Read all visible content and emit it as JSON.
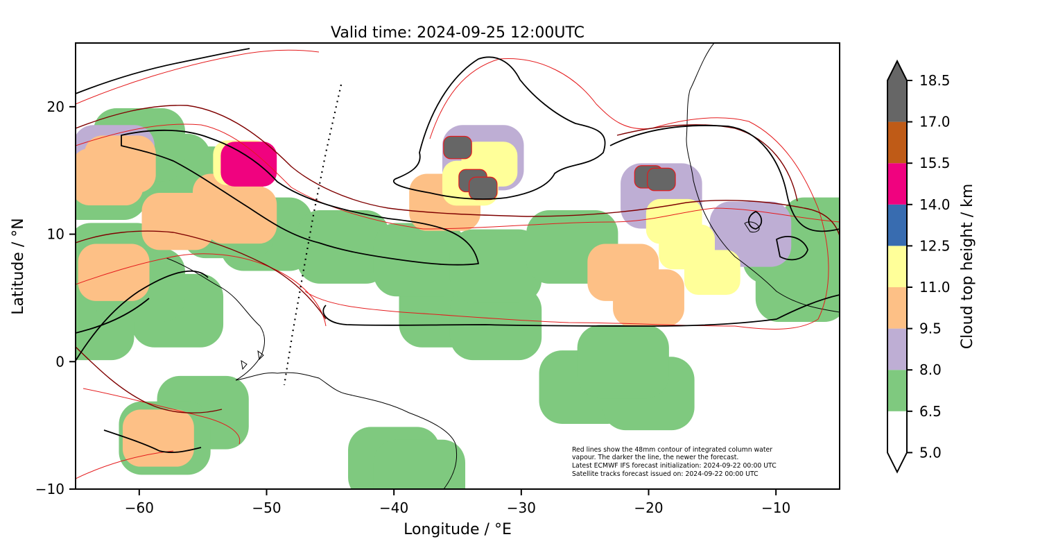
{
  "title": "Valid time: 2024-09-25 12:00UTC",
  "x_axis": {
    "label": "Longitude / °E",
    "range": [
      -65,
      -5
    ],
    "ticks": [
      -60,
      -50,
      -40,
      -30,
      -20,
      -10
    ],
    "tick_labels": [
      "−60",
      "−50",
      "−40",
      "−30",
      "−20",
      "−10"
    ]
  },
  "y_axis": {
    "label": "Latitude / °N",
    "range": [
      -10,
      25
    ],
    "ticks": [
      -10,
      0,
      10,
      20
    ],
    "tick_labels": [
      "−10",
      "0",
      "10",
      "20"
    ]
  },
  "colorbar": {
    "label": "Cloud top height / km",
    "levels": [
      5.0,
      6.5,
      8.0,
      9.5,
      11.0,
      12.5,
      14.0,
      15.5,
      17.0,
      18.5
    ],
    "level_labels": [
      "5.0",
      "6.5",
      "8.0",
      "9.5",
      "11.0",
      "12.5",
      "14.0",
      "15.5",
      "17.0",
      "18.5"
    ],
    "colors": [
      "#ffffff",
      "#7fc97f",
      "#beaed4",
      "#fdc086",
      "#ffff99",
      "#386cb0",
      "#f0027f",
      "#bf5b17",
      "#666666"
    ],
    "extend": "both"
  },
  "annotation": [
    "Red lines show the 48mm contour of integrated column water",
    "vapour. The darker the line, the newer the forecast.",
    "Latest ECMWF IFS forecast initialization: 2024-09-22 00:00 UTC",
    "Satellite tracks forecast issued on: 2024-09-22 00:00 UTC"
  ],
  "chart_data": {
    "type": "map",
    "fill_field": "Cloud top height / km",
    "cloud_regions": [
      {
        "name": "west",
        "cells": [
          [
            -62,
            16,
            8.5
          ],
          [
            -60,
            17,
            7.5
          ],
          [
            -63,
            14,
            7
          ],
          [
            -58,
            15,
            7
          ],
          [
            -56,
            14,
            6.8
          ],
          [
            -55,
            12,
            7
          ],
          [
            -53,
            11,
            7.2
          ],
          [
            -50,
            10,
            6.8
          ],
          [
            -62,
            8,
            6.8
          ],
          [
            -60,
            6,
            6.8
          ],
          [
            -57,
            4,
            6.6
          ],
          [
            -64,
            3,
            6.6
          ],
          [
            -58,
            -6,
            6.8
          ],
          [
            -55,
            -4,
            6.6
          ]
        ]
      },
      {
        "name": "west-peaks",
        "cells": [
          [
            -61.5,
            15.5,
            10.5
          ],
          [
            -62.5,
            14.5,
            10
          ],
          [
            -52,
            15.6,
            12.4
          ],
          [
            -51.4,
            15.5,
            14.5
          ],
          [
            -53,
            12.5,
            10.3
          ],
          [
            -57,
            11,
            10.2
          ],
          [
            -52,
            11.5,
            10
          ],
          [
            -58.5,
            -6,
            9.8
          ],
          [
            -62,
            7,
            9.6
          ]
        ]
      },
      {
        "name": "central-storm",
        "cells": [
          [
            -33,
            16,
            8
          ],
          [
            -34,
            14,
            11.5
          ],
          [
            -32.5,
            15.5,
            12
          ],
          [
            -35,
            16.8,
            18
          ],
          [
            -33.8,
            14.2,
            18
          ],
          [
            -33,
            13.6,
            18
          ],
          [
            -36,
            12.5,
            9.6
          ]
        ]
      },
      {
        "name": "itcz-band",
        "cells": [
          [
            -44,
            9,
            7
          ],
          [
            -38,
            8,
            7
          ],
          [
            -32,
            7.5,
            7
          ],
          [
            -26,
            9,
            7
          ],
          [
            -32,
            3,
            6.8
          ],
          [
            -36,
            4,
            6.6
          ],
          [
            -22,
            0,
            6.8
          ],
          [
            -25,
            -2,
            6.6
          ],
          [
            -20,
            -2.5,
            6.6
          ],
          [
            -40,
            -8,
            7
          ],
          [
            -38,
            -9,
            7
          ]
        ]
      },
      {
        "name": "east-system",
        "cells": [
          [
            -19,
            13,
            8
          ],
          [
            -18,
            11,
            11.5
          ],
          [
            -17,
            9,
            11
          ],
          [
            -15,
            7,
            11
          ],
          [
            -20,
            5,
            10
          ],
          [
            -22,
            7,
            10.5
          ],
          [
            -20,
            14.5,
            18
          ],
          [
            -19,
            14.3,
            18
          ],
          [
            -12,
            10,
            8
          ],
          [
            -9,
            9,
            7
          ],
          [
            -8,
            6,
            7
          ],
          [
            -6,
            10,
            7
          ]
        ]
      }
    ],
    "overlays": {
      "water_vapour_contour_mm": 48,
      "satellite_track": "dotted"
    }
  }
}
